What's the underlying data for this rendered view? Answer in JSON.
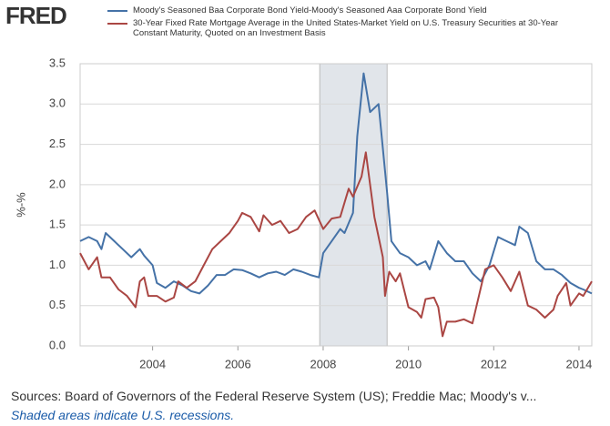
{
  "logo": "FRED",
  "chart_data": {
    "type": "line",
    "ylabel": "%-%",
    "xlim": [
      2002.3,
      2014.3
    ],
    "xticks": [
      2004,
      2006,
      2008,
      2010,
      2012,
      2014
    ],
    "ylim": [
      0,
      3.5
    ],
    "yticks": [
      {
        "value": 0,
        "label": "0.0"
      },
      0.5,
      {
        "value": 1,
        "label": "1.0"
      },
      1.5,
      {
        "value": 2,
        "label": "2.0"
      },
      2.5,
      {
        "value": 3,
        "label": "3.0"
      },
      3.5
    ],
    "grid": true,
    "recessions": [
      [
        2007.92,
        2009.5
      ]
    ],
    "series": [
      {
        "name": "Moody's Seasoned Baa Corporate Bond Yield-Moody's Seasoned Aaa Corporate Bond Yield",
        "color": "#4572a7",
        "x": [
          2002.3,
          2002.5,
          2002.7,
          2002.8,
          2002.9,
          2003.1,
          2003.3,
          2003.5,
          2003.7,
          2003.8,
          2004.0,
          2004.1,
          2004.3,
          2004.5,
          2004.7,
          2004.9,
          2005.1,
          2005.3,
          2005.5,
          2005.7,
          2005.9,
          2006.1,
          2006.3,
          2006.5,
          2006.7,
          2006.9,
          2007.1,
          2007.3,
          2007.5,
          2007.7,
          2007.9,
          2008.0,
          2008.2,
          2008.4,
          2008.5,
          2008.7,
          2008.8,
          2008.95,
          2009.1,
          2009.3,
          2009.5,
          2009.6,
          2009.8,
          2010.0,
          2010.2,
          2010.4,
          2010.5,
          2010.7,
          2010.9,
          2011.1,
          2011.3,
          2011.5,
          2011.7,
          2011.9,
          2012.1,
          2012.3,
          2012.5,
          2012.6,
          2012.8,
          2013.0,
          2013.2,
          2013.4,
          2013.6,
          2013.8,
          2014.0,
          2014.1,
          2014.3
        ],
        "values": [
          1.3,
          1.35,
          1.3,
          1.2,
          1.4,
          1.3,
          1.2,
          1.1,
          1.2,
          1.12,
          1.0,
          0.78,
          0.72,
          0.8,
          0.75,
          0.68,
          0.65,
          0.75,
          0.88,
          0.88,
          0.95,
          0.94,
          0.9,
          0.85,
          0.9,
          0.92,
          0.88,
          0.95,
          0.92,
          0.88,
          0.85,
          1.15,
          1.3,
          1.45,
          1.4,
          1.65,
          2.6,
          3.38,
          2.9,
          3.0,
          1.9,
          1.3,
          1.15,
          1.1,
          1.0,
          1.05,
          0.95,
          1.3,
          1.15,
          1.05,
          1.05,
          0.9,
          0.8,
          1.0,
          1.35,
          1.3,
          1.25,
          1.48,
          1.4,
          1.05,
          0.95,
          0.95,
          0.88,
          0.78,
          0.72,
          0.7,
          0.65
        ]
      },
      {
        "name": "30-Year Fixed Rate Mortgage Average in the United States-Market Yield on U.S. Treasury Securities at 30-Year Constant Maturity, Quoted on an Investment Basis",
        "color": "#aa4643",
        "x": [
          2002.3,
          2002.5,
          2002.7,
          2002.8,
          2003.0,
          2003.2,
          2003.4,
          2003.6,
          2003.7,
          2003.8,
          2003.9,
          2004.1,
          2004.3,
          2004.5,
          2004.6,
          2004.8,
          2005.0,
          2005.2,
          2005.4,
          2005.6,
          2005.8,
          2006.0,
          2006.1,
          2006.3,
          2006.5,
          2006.6,
          2006.8,
          2007.0,
          2007.2,
          2007.4,
          2007.6,
          2007.8,
          2008.0,
          2008.2,
          2008.4,
          2008.6,
          2008.7,
          2008.9,
          2009.0,
          2009.2,
          2009.4,
          2009.45,
          2009.55,
          2009.7,
          2009.8,
          2010.0,
          2010.2,
          2010.3,
          2010.4,
          2010.6,
          2010.7,
          2010.8,
          2010.9,
          2011.1,
          2011.3,
          2011.5,
          2011.6,
          2011.8,
          2012.0,
          2012.2,
          2012.4,
          2012.6,
          2012.8,
          2013.0,
          2013.2,
          2013.4,
          2013.5,
          2013.7,
          2013.8,
          2014.0,
          2014.1,
          2014.3
        ],
        "values": [
          1.15,
          0.95,
          1.1,
          0.85,
          0.85,
          0.7,
          0.62,
          0.48,
          0.8,
          0.85,
          0.62,
          0.62,
          0.55,
          0.6,
          0.8,
          0.72,
          0.8,
          1.0,
          1.2,
          1.3,
          1.4,
          1.55,
          1.65,
          1.6,
          1.42,
          1.62,
          1.5,
          1.55,
          1.4,
          1.45,
          1.6,
          1.68,
          1.45,
          1.58,
          1.6,
          1.95,
          1.85,
          2.1,
          2.4,
          1.6,
          1.1,
          0.62,
          0.92,
          0.8,
          0.9,
          0.48,
          0.42,
          0.35,
          0.58,
          0.6,
          0.48,
          0.12,
          0.3,
          0.3,
          0.33,
          0.28,
          0.5,
          0.95,
          1.0,
          0.85,
          0.68,
          0.92,
          0.5,
          0.45,
          0.35,
          0.45,
          0.62,
          0.78,
          0.5,
          0.65,
          0.62,
          0.8
        ]
      }
    ],
    "source": "Sources: Board of Governors of the Federal Reserve System (US); Freddie Mac; Moody's v...",
    "note": "Shaded areas indicate U.S. recessions."
  }
}
